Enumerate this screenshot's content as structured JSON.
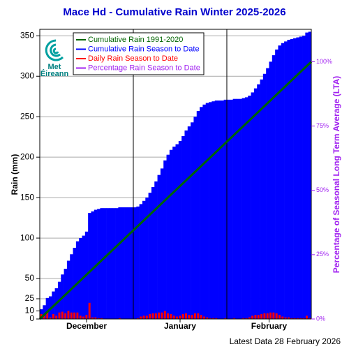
{
  "chart_data": {
    "type": "bar",
    "title": "Mace Hd - Cumulative Rain Winter 2025-2026",
    "ylabel": "Rain (mm)",
    "y2label": "Percentage of Seasonal Long Term Average (LTA)",
    "footer": "Latest Data 28 February 2026",
    "logo": [
      "Met",
      "Éireann"
    ],
    "xlim": [
      0,
      90
    ],
    "xticks": [
      {
        "value": 15.5,
        "label": "December"
      },
      {
        "value": 46.5,
        "label": "January"
      },
      {
        "value": 76,
        "label": "February"
      }
    ],
    "month_boundaries": [
      31,
      62
    ],
    "ylim": [
      0,
      358
    ],
    "yticks": [
      0,
      10,
      25,
      50,
      100,
      150,
      200,
      250,
      300,
      350
    ],
    "y2lim": [
      0,
      112.6
    ],
    "y2ticks": [
      {
        "value": 0,
        "label": "0%"
      },
      {
        "value": 25,
        "label": "25%"
      },
      {
        "value": 50,
        "label": "50%"
      },
      {
        "value": 75,
        "label": "75%"
      },
      {
        "value": 100,
        "label": "100%"
      }
    ],
    "grid": true,
    "legend": "top-left",
    "series": [
      {
        "name": "Cumulative Rain 1991-2020",
        "color": "#006400",
        "kind": "line",
        "x": [
          0,
          90
        ],
        "values": [
          0,
          318
        ]
      },
      {
        "name": "Cumulative Rain Season to Date",
        "color": "#0000ff",
        "kind": "bar",
        "values": [
          12,
          17,
          26,
          28,
          34,
          38,
          46,
          55,
          62,
          72,
          80,
          88,
          96,
          100,
          103,
          108,
          131,
          133,
          135,
          136,
          137,
          137,
          137,
          137,
          137,
          137,
          138,
          138,
          138,
          138,
          138,
          138,
          139,
          142,
          146,
          150,
          156,
          163,
          170,
          178,
          186,
          196,
          203,
          209,
          213,
          216,
          220,
          226,
          233,
          238,
          243,
          250,
          257,
          262,
          265,
          267,
          268,
          269,
          270,
          270,
          270,
          271,
          271,
          271,
          272,
          272,
          272,
          273,
          274,
          276,
          280,
          285,
          290,
          296,
          303,
          310,
          318,
          326,
          333,
          338,
          341,
          343,
          345,
          346,
          347,
          348,
          349,
          350,
          354,
          355
        ]
      },
      {
        "name": "Daily Rain Season to Date",
        "color": "#ff0000",
        "kind": "thinbar",
        "values": [
          6,
          5,
          9,
          2,
          6,
          4,
          8,
          9,
          7,
          10,
          8,
          8,
          8,
          4,
          3,
          5,
          20,
          2,
          2,
          1,
          1,
          0,
          0,
          0,
          0,
          0,
          1,
          0,
          0,
          0,
          0,
          0,
          1,
          3,
          4,
          4,
          6,
          7,
          7,
          8,
          8,
          10,
          7,
          6,
          4,
          3,
          4,
          6,
          7,
          5,
          5,
          7,
          7,
          5,
          3,
          2,
          1,
          1,
          1,
          0,
          0,
          1,
          0,
          0,
          1,
          0,
          0,
          1,
          1,
          2,
          4,
          5,
          5,
          6,
          7,
          7,
          8,
          8,
          7,
          5,
          3,
          2,
          2,
          1,
          1,
          1,
          1,
          1,
          4,
          1
        ]
      },
      {
        "name": "Percentage Rain Season to Date",
        "color": "#a020f0",
        "axis": "y2"
      }
    ]
  }
}
